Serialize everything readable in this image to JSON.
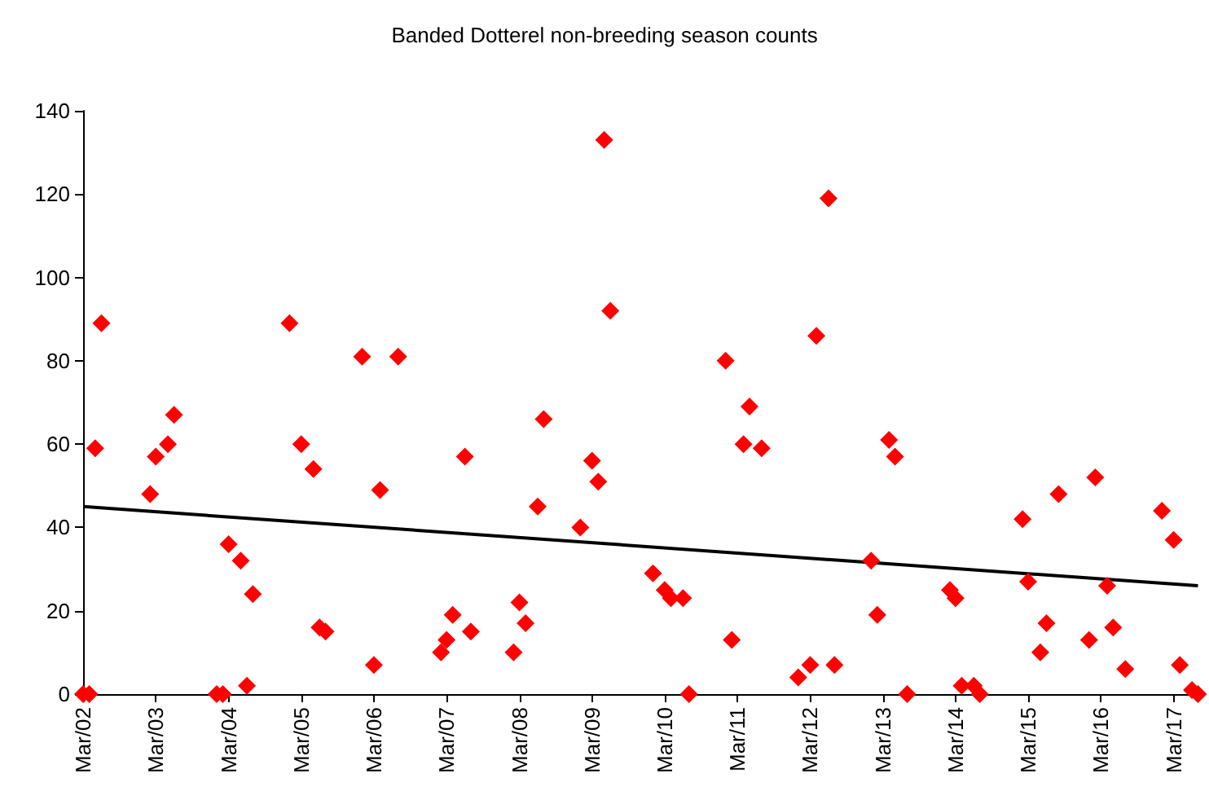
{
  "chart_data": {
    "type": "scatter",
    "title": "Banded Dotterel non-breeding season counts",
    "xlim": [
      "2002-03",
      "2017-08"
    ],
    "ylim": [
      0,
      140
    ],
    "yticks": [
      0,
      20,
      40,
      60,
      80,
      100,
      120,
      140
    ],
    "xticks": [
      {
        "value": "2002-03",
        "label": "Mar/02"
      },
      {
        "value": "2003-03",
        "label": "Mar/03"
      },
      {
        "value": "2004-03",
        "label": "Mar/04"
      },
      {
        "value": "2005-03",
        "label": "Mar/05"
      },
      {
        "value": "2006-03",
        "label": "Mar/06"
      },
      {
        "value": "2007-03",
        "label": "Mar/07"
      },
      {
        "value": "2008-03",
        "label": "Mar/08"
      },
      {
        "value": "2009-03",
        "label": "Mar/09"
      },
      {
        "value": "2010-03",
        "label": "Mar/10"
      },
      {
        "value": "2011-03",
        "label": "Mar/11"
      },
      {
        "value": "2012-03",
        "label": "Mar/12"
      },
      {
        "value": "2013-03",
        "label": "Mar/13"
      },
      {
        "value": "2014-03",
        "label": "Mar/14"
      },
      {
        "value": "2015-03",
        "label": "Mar/15"
      },
      {
        "value": "2016-03",
        "label": "Mar/16"
      },
      {
        "value": "2017-03",
        "label": "Mar/17"
      }
    ],
    "grid": false,
    "series": [
      {
        "color": "#ff0000",
        "marker": "diamond",
        "x": [
          "2002-03",
          "2002-04",
          "2002-05",
          "2002-06",
          "2003-02",
          "2003-03",
          "2003-05",
          "2003-06",
          "2004-01",
          "2004-02",
          "2004-03",
          "2004-05",
          "2004-06",
          "2004-07",
          "2005-01",
          "2005-03",
          "2005-05",
          "2005-06",
          "2005-07",
          "2006-01",
          "2006-03",
          "2006-04",
          "2006-07",
          "2007-02",
          "2007-03",
          "2007-04",
          "2007-06",
          "2007-07",
          "2008-02",
          "2008-03",
          "2008-04",
          "2008-06",
          "2008-07",
          "2009-01",
          "2009-03",
          "2009-04",
          "2009-05",
          "2009-06",
          "2010-01",
          "2010-03",
          "2010-04",
          "2010-06",
          "2010-07",
          "2011-01",
          "2011-02",
          "2011-04",
          "2011-05",
          "2011-07",
          "2012-01",
          "2012-03",
          "2012-04",
          "2012-06",
          "2012-07",
          "2013-01",
          "2013-02",
          "2013-04",
          "2013-05",
          "2013-07",
          "2014-02",
          "2014-03",
          "2014-04",
          "2014-06",
          "2014-07",
          "2015-02",
          "2015-03",
          "2015-05",
          "2015-06",
          "2015-08",
          "2016-01",
          "2016-02",
          "2016-04",
          "2016-05",
          "2016-07",
          "2017-01",
          "2017-03",
          "2017-04",
          "2017-06",
          "2017-07"
        ],
        "values": [
          0,
          0,
          59,
          89,
          48,
          57,
          60,
          67,
          0,
          0,
          36,
          32,
          2,
          24,
          89,
          60,
          54,
          16,
          15,
          81,
          7,
          49,
          81,
          10,
          13,
          19,
          57,
          15,
          10,
          22,
          17,
          45,
          66,
          40,
          56,
          51,
          133,
          92,
          29,
          25,
          23,
          23,
          0,
          80,
          13,
          60,
          69,
          59,
          4,
          7,
          86,
          119,
          7,
          32,
          19,
          61,
          57,
          0,
          25,
          23,
          2,
          2,
          0,
          42,
          27,
          10,
          17,
          48,
          13,
          52,
          26,
          16,
          6,
          44,
          37,
          7,
          1,
          0
        ]
      },
      {
        "type": "line",
        "color": "#000000",
        "marker": "none",
        "x": [
          "2002-03",
          "2017-07"
        ],
        "values": [
          45,
          26
        ]
      }
    ]
  }
}
